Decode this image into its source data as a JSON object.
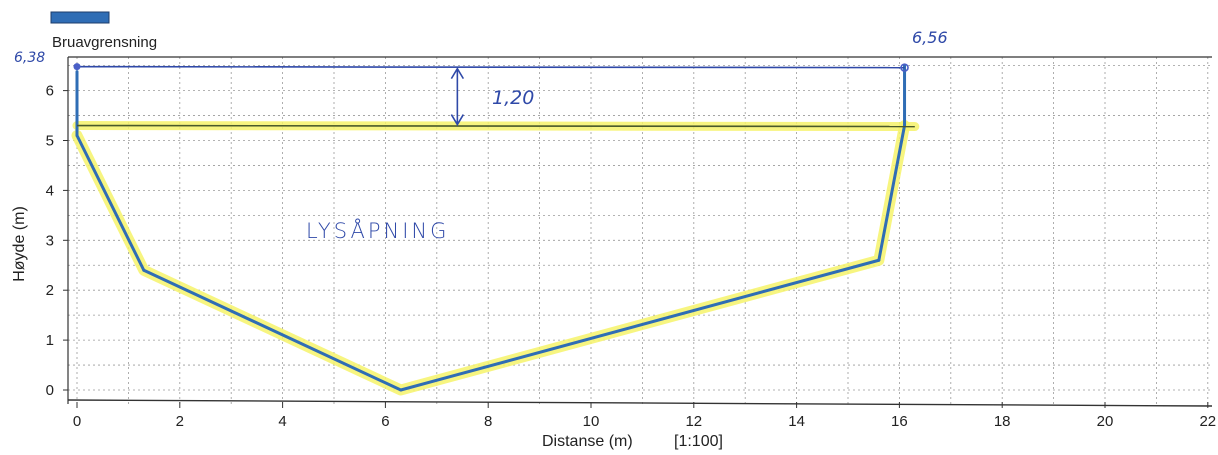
{
  "chart_data": {
    "type": "line",
    "title": "",
    "xlabel": "Distanse (m)",
    "xlabel_scale": "[1:100]",
    "ylabel": "Høyde (m)",
    "xlim": [
      0,
      22
    ],
    "ylim": [
      0,
      6.5
    ],
    "xticks": [
      "0",
      "2",
      "4",
      "6",
      "8",
      "10",
      "12",
      "14",
      "16",
      "18",
      "20",
      "22"
    ],
    "yticks": [
      "0",
      "1",
      "2",
      "3",
      "4",
      "5",
      "6"
    ],
    "grid": true,
    "legend": {
      "placement": "top-left",
      "label": "Bruavgrensning",
      "color": "#2f6db5"
    },
    "series": [
      {
        "name": "Bruavgrensning",
        "color": "#2f6db5",
        "x": [
          0,
          0,
          1.3,
          6.3,
          15.6,
          16.1,
          16.1
        ],
        "y": [
          6.38,
          5.1,
          2.4,
          0,
          2.6,
          5.3,
          6.5
        ]
      }
    ],
    "annotations": {
      "left_top_label": "6,38",
      "right_top_label": "6,56",
      "clearance_label": "1,20",
      "area_label": "LYSÅPNING",
      "top_line": {
        "x": [
          0,
          16.1
        ],
        "y": [
          6.48,
          6.46
        ],
        "color": "#2f49a8"
      },
      "waterline": {
        "x": [
          0,
          16.3
        ],
        "y": [
          5.3,
          5.28
        ],
        "color": "#4a5a2a"
      },
      "clearance_arrow_x": 7.4,
      "highlight_color": "#f6f36a"
    }
  }
}
